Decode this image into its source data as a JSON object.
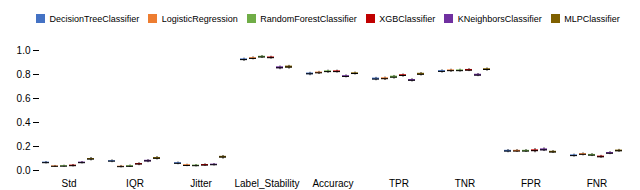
{
  "chart_data": {
    "type": "box",
    "categories": [
      "Std",
      "IQR",
      "Jitter",
      "Label_Stability",
      "Accuracy",
      "TPR",
      "TNR",
      "FPR",
      "FNR"
    ],
    "series": [
      {
        "name": "DecisionTreeClassifier",
        "color": "#4472C4",
        "values": [
          [
            0.055,
            0.06,
            0.065,
            0.07,
            0.075
          ],
          [
            0.065,
            0.072,
            0.078,
            0.082,
            0.088
          ],
          [
            0.048,
            0.055,
            0.06,
            0.065,
            0.07
          ],
          [
            0.91,
            0.918,
            0.924,
            0.93,
            0.936
          ],
          [
            0.79,
            0.798,
            0.806,
            0.812,
            0.818
          ],
          [
            0.748,
            0.756,
            0.762,
            0.77,
            0.776
          ],
          [
            0.812,
            0.82,
            0.826,
            0.832,
            0.838
          ],
          [
            0.148,
            0.155,
            0.162,
            0.168,
            0.174
          ],
          [
            0.112,
            0.118,
            0.124,
            0.13,
            0.136
          ]
        ]
      },
      {
        "name": "LogisticRegression",
        "color": "#ED7D31",
        "values": [
          [
            0.025,
            0.03,
            0.035,
            0.038,
            0.042
          ],
          [
            0.022,
            0.028,
            0.032,
            0.036,
            0.042
          ],
          [
            0.032,
            0.038,
            0.042,
            0.048,
            0.052
          ],
          [
            0.922,
            0.928,
            0.934,
            0.94,
            0.946
          ],
          [
            0.8,
            0.808,
            0.814,
            0.82,
            0.826
          ],
          [
            0.75,
            0.758,
            0.765,
            0.772,
            0.778
          ],
          [
            0.818,
            0.825,
            0.832,
            0.838,
            0.844
          ],
          [
            0.15,
            0.156,
            0.162,
            0.168,
            0.174
          ],
          [
            0.122,
            0.128,
            0.135,
            0.14,
            0.146
          ]
        ]
      },
      {
        "name": "RandomForestClassifier",
        "color": "#70AD47",
        "values": [
          [
            0.028,
            0.032,
            0.036,
            0.04,
            0.044
          ],
          [
            0.025,
            0.03,
            0.035,
            0.04,
            0.045
          ],
          [
            0.03,
            0.035,
            0.04,
            0.045,
            0.05
          ],
          [
            0.934,
            0.94,
            0.946,
            0.952,
            0.958
          ],
          [
            0.81,
            0.818,
            0.824,
            0.83,
            0.836
          ],
          [
            0.762,
            0.77,
            0.778,
            0.786,
            0.792
          ],
          [
            0.82,
            0.826,
            0.832,
            0.838,
            0.844
          ],
          [
            0.15,
            0.156,
            0.162,
            0.168,
            0.174
          ],
          [
            0.116,
            0.122,
            0.128,
            0.134,
            0.14
          ]
        ]
      },
      {
        "name": "XGBClassifier",
        "color": "#C00000",
        "values": [
          [
            0.03,
            0.035,
            0.04,
            0.045,
            0.05
          ],
          [
            0.04,
            0.048,
            0.054,
            0.058,
            0.064
          ],
          [
            0.035,
            0.04,
            0.045,
            0.05,
            0.055
          ],
          [
            0.928,
            0.934,
            0.94,
            0.946,
            0.952
          ],
          [
            0.812,
            0.818,
            0.824,
            0.83,
            0.836
          ],
          [
            0.778,
            0.784,
            0.792,
            0.798,
            0.804
          ],
          [
            0.824,
            0.83,
            0.836,
            0.842,
            0.848
          ],
          [
            0.148,
            0.158,
            0.165,
            0.172,
            0.182
          ],
          [
            0.102,
            0.108,
            0.114,
            0.12,
            0.126
          ]
        ]
      },
      {
        "name": "KNeighborsClassifier",
        "color": "#7030A0",
        "values": [
          [
            0.055,
            0.06,
            0.065,
            0.07,
            0.075
          ],
          [
            0.065,
            0.072,
            0.08,
            0.085,
            0.09
          ],
          [
            0.038,
            0.043,
            0.048,
            0.053,
            0.058
          ],
          [
            0.84,
            0.848,
            0.856,
            0.864,
            0.87
          ],
          [
            0.772,
            0.778,
            0.784,
            0.79,
            0.796
          ],
          [
            0.738,
            0.745,
            0.752,
            0.758,
            0.764
          ],
          [
            0.782,
            0.788,
            0.795,
            0.802,
            0.808
          ],
          [
            0.158,
            0.165,
            0.172,
            0.18,
            0.188
          ],
          [
            0.132,
            0.138,
            0.144,
            0.15,
            0.156
          ]
        ]
      },
      {
        "name": "MLPClassifier",
        "color": "#7F6000",
        "values": [
          [
            0.08,
            0.09,
            0.095,
            0.1,
            0.108
          ],
          [
            0.088,
            0.095,
            0.102,
            0.108,
            0.115
          ],
          [
            0.095,
            0.105,
            0.112,
            0.118,
            0.125
          ],
          [
            0.845,
            0.854,
            0.862,
            0.87,
            0.876
          ],
          [
            0.796,
            0.802,
            0.808,
            0.814,
            0.82
          ],
          [
            0.788,
            0.796,
            0.802,
            0.81,
            0.816
          ],
          [
            0.828,
            0.835,
            0.842,
            0.848,
            0.854
          ],
          [
            0.142,
            0.148,
            0.154,
            0.16,
            0.166
          ],
          [
            0.152,
            0.158,
            0.164,
            0.17,
            0.176
          ]
        ]
      }
    ],
    "ylim": [
      0.0,
      1.0
    ],
    "yticks": [
      {
        "value": 0.0,
        "label": "0.0"
      },
      0.2,
      0.4,
      0.6,
      0.8,
      {
        "value": 1.0,
        "label": "1.0"
      }
    ],
    "legend": "upper left"
  }
}
